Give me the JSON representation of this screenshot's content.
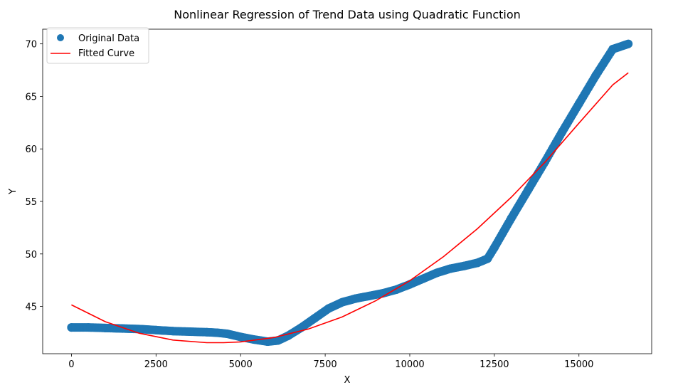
{
  "chart_data": {
    "type": "scatter",
    "title": "Nonlinear Regression of Trend Data using Quadratic Function",
    "xlabel": "X",
    "ylabel": "Y",
    "xlim": [
      -850,
      17150
    ],
    "ylim": [
      40.5,
      71.4
    ],
    "xticks": [
      0,
      2500,
      5000,
      7500,
      10000,
      12500,
      15000
    ],
    "yticks": [
      45,
      50,
      55,
      60,
      65,
      70
    ],
    "grid": false,
    "legend_position": "top-left",
    "series": [
      {
        "name": "Original Data",
        "kind": "scatter",
        "color": "#1f77b4",
        "x": [
          0,
          500,
          1000,
          1500,
          2000,
          2500,
          3000,
          3500,
          4000,
          4300,
          4600,
          5000,
          5400,
          5800,
          6100,
          6400,
          6800,
          7200,
          7600,
          8000,
          8400,
          8800,
          9200,
          9600,
          10000,
          10400,
          10800,
          11200,
          11600,
          12000,
          12300,
          12500,
          13000,
          13500,
          14000,
          14500,
          15000,
          15500,
          16000,
          16460
        ],
        "y": [
          43.0,
          43.0,
          42.95,
          42.9,
          42.85,
          42.75,
          42.65,
          42.6,
          42.55,
          42.5,
          42.4,
          42.1,
          41.85,
          41.65,
          41.75,
          42.2,
          43.0,
          43.9,
          44.8,
          45.4,
          45.75,
          46.0,
          46.25,
          46.6,
          47.1,
          47.65,
          48.2,
          48.6,
          48.85,
          49.15,
          49.55,
          50.6,
          53.4,
          56.1,
          58.8,
          61.6,
          64.3,
          67.0,
          69.5,
          70.0
        ]
      },
      {
        "name": "Fitted Curve",
        "kind": "line",
        "color": "#ff0000",
        "x": [
          0,
          1000,
          2000,
          3000,
          4000,
          4500,
          5000,
          6000,
          7000,
          8000,
          9000,
          10000,
          11000,
          12000,
          13000,
          14000,
          15000,
          16000,
          16460
        ],
        "y": [
          45.15,
          43.55,
          42.45,
          41.8,
          41.55,
          41.55,
          41.62,
          42.05,
          42.85,
          44.0,
          45.55,
          47.45,
          49.75,
          52.4,
          55.4,
          58.75,
          62.45,
          66.1,
          67.25
        ]
      }
    ]
  }
}
